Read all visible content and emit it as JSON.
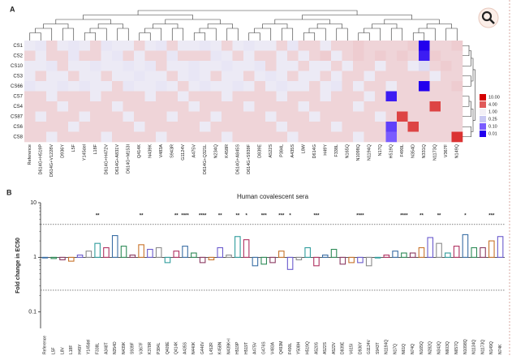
{
  "panel_a_label": "A",
  "panel_b_label": "B",
  "chart_data": [
    {
      "type": "heatmap",
      "rows": [
        "CS1",
        "CS2",
        "CS10",
        "CS3",
        "CS66",
        "CS7",
        "CS4",
        "CS87",
        "CS6",
        "CS8"
      ],
      "columns": [
        "Reference",
        "D614G+H519P",
        "D614G+V1228V",
        "D936Y",
        "L5F",
        "Y145del",
        "L18F",
        "D614G+H472V",
        "D614G+A831V",
        "D614G+M153I",
        "Q414K",
        "N439K",
        "V483A",
        "S943R",
        "G1124V",
        "A475V",
        "D614G+Q321L",
        "N234Q",
        "K458R",
        "D614G+A845S",
        "D614G+S939F",
        "D839E",
        "A522S",
        "P384L",
        "A435S",
        "L8W",
        "D614G",
        "H49Y",
        "F338L",
        "N165Q",
        "N1098Q",
        "N1194Q",
        "N17Q",
        "H519Q",
        "F490L",
        "N354D",
        "N331Q",
        "N1173Q",
        "V367F",
        "N149Q"
      ],
      "values": [
        [
          0.8,
          0.7,
          1.3,
          0.8,
          0.7,
          0.8,
          1.3,
          0.7,
          0.8,
          0.8,
          1.3,
          0.8,
          0.7,
          1.3,
          0.8,
          0.8,
          0.7,
          0.8,
          1.3,
          0.8,
          0.7,
          0.8,
          0.8,
          1.3,
          0.7,
          1.3,
          1.3,
          0.8,
          1.3,
          1.3,
          1.4,
          1.3,
          1.3,
          1.3,
          1.3,
          1.4,
          0.01,
          1.3,
          1.3,
          1.4
        ],
        [
          1.3,
          0.8,
          1.3,
          1.3,
          0.7,
          1.3,
          1.3,
          0.8,
          0.7,
          1.3,
          0.8,
          1.3,
          1.3,
          0.7,
          1.3,
          1.3,
          1.3,
          0.7,
          0.8,
          1.3,
          0.8,
          1.3,
          1.3,
          0.8,
          1.3,
          0.8,
          1.3,
          1.4,
          0.8,
          1.3,
          1.4,
          1.3,
          1.4,
          1.3,
          1.4,
          1.3,
          0.02,
          1.4,
          1.3,
          1.3
        ],
        [
          0.8,
          0.8,
          0.7,
          1.3,
          0.8,
          0.8,
          0.7,
          0.8,
          0.8,
          0.7,
          0.8,
          0.7,
          1.3,
          0.8,
          0.8,
          0.7,
          0.8,
          0.8,
          0.7,
          0.8,
          0.8,
          0.7,
          1.3,
          0.8,
          0.8,
          1.3,
          0.8,
          0.8,
          1.3,
          0.8,
          1.3,
          1.3,
          0.8,
          1.3,
          1.3,
          0.8,
          0.5,
          1.3,
          1.4,
          1.3
        ],
        [
          0.8,
          1.3,
          0.8,
          0.8,
          1.3,
          0.8,
          0.8,
          1.3,
          0.8,
          0.8,
          0.7,
          0.8,
          0.8,
          1.3,
          0.8,
          0.7,
          0.8,
          1.3,
          0.8,
          0.8,
          1.3,
          0.8,
          0.7,
          0.8,
          1.3,
          0.8,
          0.8,
          1.3,
          0.8,
          1.3,
          1.3,
          0.8,
          1.3,
          1.3,
          1.3,
          1.3,
          1.3,
          0.8,
          1.3,
          1.3
        ],
        [
          0.7,
          0.8,
          0.8,
          0.7,
          0.8,
          0.7,
          0.8,
          0.8,
          1.3,
          0.7,
          0.8,
          0.8,
          0.7,
          0.8,
          1.3,
          0.8,
          0.7,
          0.8,
          0.8,
          0.7,
          0.8,
          1.3,
          0.8,
          0.7,
          0.8,
          0.8,
          1.3,
          0.8,
          0.7,
          1.3,
          0.8,
          1.3,
          1.3,
          0.8,
          1.3,
          1.3,
          0.01,
          1.3,
          1.3,
          1.4
        ],
        [
          1.3,
          1.3,
          0.8,
          1.3,
          1.3,
          1.3,
          0.8,
          1.3,
          1.3,
          1.3,
          1.3,
          0.8,
          1.3,
          1.3,
          0.8,
          1.3,
          1.3,
          1.3,
          0.8,
          1.3,
          1.3,
          1.3,
          1.3,
          0.8,
          1.3,
          1.3,
          1.3,
          0.8,
          1.3,
          1.3,
          1.3,
          0.8,
          1.3,
          0.02,
          1.3,
          1.3,
          1.3,
          1.3,
          1.3,
          1.3
        ],
        [
          1.3,
          1.3,
          1.3,
          0.8,
          1.3,
          1.3,
          1.3,
          1.3,
          0.8,
          1.3,
          1.3,
          1.3,
          1.3,
          1.3,
          1.3,
          0.8,
          1.3,
          1.3,
          1.3,
          1.3,
          0.8,
          1.3,
          1.3,
          1.3,
          1.3,
          0.8,
          1.3,
          1.3,
          1.3,
          1.3,
          0.8,
          1.3,
          1.3,
          1.3,
          1.3,
          1.3,
          1.3,
          5,
          1.3,
          1.3
        ],
        [
          1.3,
          0.8,
          1.3,
          1.3,
          1.3,
          0.8,
          1.3,
          1.3,
          1.3,
          0.8,
          1.3,
          1.3,
          1.3,
          0.8,
          1.3,
          1.3,
          1.3,
          0.8,
          1.3,
          1.3,
          1.3,
          1.3,
          0.8,
          1.3,
          1.3,
          1.3,
          0.8,
          1.3,
          1.3,
          1.3,
          1.3,
          1.3,
          0.8,
          1.3,
          5,
          1.3,
          1.3,
          1.3,
          1.3,
          1.3
        ],
        [
          1.3,
          1.3,
          1.3,
          1.3,
          0.8,
          1.3,
          1.3,
          1.3,
          1.3,
          1.3,
          0.8,
          1.3,
          1.3,
          1.3,
          1.3,
          1.3,
          0.8,
          1.3,
          1.3,
          1.3,
          1.3,
          1.3,
          1.3,
          0.8,
          1.3,
          1.3,
          1.3,
          1.3,
          0.8,
          1.3,
          1.3,
          1.3,
          1.3,
          0.05,
          1.3,
          5,
          1.3,
          1.3,
          1.3,
          1.3
        ],
        [
          1.3,
          1.3,
          0.8,
          1.3,
          1.3,
          1.3,
          1.3,
          0.8,
          1.3,
          1.3,
          1.3,
          1.3,
          0.8,
          1.3,
          1.3,
          1.3,
          1.3,
          1.3,
          0.8,
          1.3,
          1.3,
          1.3,
          1.3,
          1.3,
          0.8,
          1.3,
          1.3,
          1.3,
          1.3,
          1.3,
          0.8,
          1.3,
          1.3,
          0.1,
          1.3,
          1.3,
          1.3,
          1.3,
          1.3,
          6
        ]
      ],
      "legend_ticks": [
        {
          "value": 10,
          "label": "10.00"
        },
        {
          "value": 4,
          "label": "4.00"
        },
        {
          "value": 1,
          "label": "1.00"
        },
        {
          "value": 0.25,
          "label": "0.25"
        },
        {
          "value": 0.1,
          "label": "0.10"
        },
        {
          "value": 0.01,
          "label": "0.01"
        }
      ],
      "legend_colors": [
        "#d40000",
        "#e05a5a",
        "#f3f0f6",
        "#c8c8f2",
        "#7a5cff",
        "#2200ee"
      ]
    },
    {
      "type": "bar",
      "title": "Human covalescent sera",
      "ylabel": "Fold change in EC50",
      "categories": [
        "Reference",
        "L5F",
        "L8V",
        "L18F",
        "H49Y",
        "Y145del",
        "F338L",
        "A348T",
        "N354D",
        "N439K",
        "S939F",
        "V367F",
        "K378R",
        "P384L",
        "Q409E",
        "Q414K",
        "A435S",
        "N440K",
        "G446V",
        "L452R",
        "K458N",
        "N439K+I",
        "H519P",
        "H519T",
        "A475V",
        "G476S",
        "V483A",
        "Q493M",
        "F490L",
        "Y508H",
        "H519Q",
        "A520S",
        "A522S",
        "A522V",
        "D839E",
        "V615I",
        "D936Y",
        "G1124V",
        "S943T",
        "N1194Q",
        "N17Q",
        "N61Q",
        "N74Q",
        "N165Q",
        "N282Q",
        "N343Q",
        "N603Q",
        "N657Q",
        "N1098Q",
        "N1134Q",
        "N1173Q",
        "N149Q",
        "N74K"
      ],
      "values": [
        1,
        0.95,
        0.9,
        0.85,
        1.1,
        1.3,
        1.8,
        1.5,
        2.5,
        1.6,
        1.1,
        1.7,
        1.4,
        1.5,
        0.8,
        1.3,
        1.6,
        1.2,
        0.8,
        0.9,
        1.5,
        1.1,
        2.4,
        2.1,
        0.7,
        0.75,
        0.8,
        1.3,
        0.6,
        0.9,
        1.5,
        0.7,
        1.1,
        1.4,
        0.75,
        0.8,
        0.8,
        0.7,
        1.0,
        1.1,
        1.3,
        1.2,
        1.2,
        1.5,
        2.3,
        1.8,
        1.2,
        1.6,
        2.6,
        1.5,
        1.5,
        2.0,
        2.4
      ],
      "significance": [
        null,
        null,
        null,
        null,
        null,
        null,
        "**",
        null,
        null,
        null,
        null,
        "**",
        null,
        null,
        null,
        "**",
        "****",
        null,
        "****",
        null,
        "**",
        null,
        "**",
        "*",
        null,
        "***",
        null,
        "***",
        "*",
        null,
        null,
        "***",
        null,
        null,
        null,
        null,
        "****",
        null,
        null,
        null,
        null,
        "****",
        null,
        "**",
        null,
        "**",
        null,
        null,
        "*",
        null,
        null,
        "***",
        null
      ],
      "log_scale": true,
      "ylim": [
        0.05,
        10
      ],
      "yticks": [
        0.1,
        1,
        10
      ],
      "reference_lines": [
        0.25,
        4
      ],
      "palette": [
        "#3a6ea5",
        "#2e8b57",
        "#8b3a62",
        "#c8732a",
        "#6a5acd",
        "#8a8a8a",
        "#2f9c9c",
        "#b03060"
      ]
    }
  ]
}
